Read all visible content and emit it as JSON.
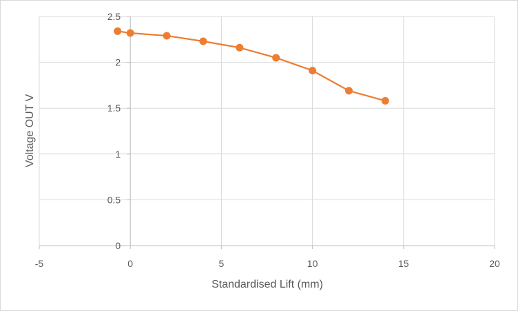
{
  "chart_data": {
    "type": "scatter",
    "title": "",
    "xlabel": "Standardised Lift (mm)",
    "ylabel": "Voltage OUT V",
    "xlim": [
      -5,
      20
    ],
    "ylim": [
      0,
      2.5
    ],
    "x_ticks": [
      -5,
      0,
      5,
      10,
      15,
      20
    ],
    "y_ticks": [
      0,
      0.5,
      1,
      1.5,
      2,
      2.5
    ],
    "x_tick_labels": [
      "-5",
      "0",
      "5",
      "10",
      "15",
      "20"
    ],
    "y_tick_labels": [
      "0",
      "0.5",
      "1",
      "1.5",
      "2",
      "2.5"
    ],
    "grid": true,
    "legend": "none",
    "line_style": "straight-with-markers",
    "series": [
      {
        "color": "#ed7d31",
        "points": [
          {
            "x": -0.7,
            "y": 2.34
          },
          {
            "x": 0,
            "y": 2.32
          },
          {
            "x": 2,
            "y": 2.29
          },
          {
            "x": 4,
            "y": 2.23
          },
          {
            "x": 6,
            "y": 2.16
          },
          {
            "x": 8,
            "y": 2.05
          },
          {
            "x": 10,
            "y": 1.91
          },
          {
            "x": 12,
            "y": 1.69
          },
          {
            "x": 14,
            "y": 1.58
          }
        ]
      }
    ]
  }
}
